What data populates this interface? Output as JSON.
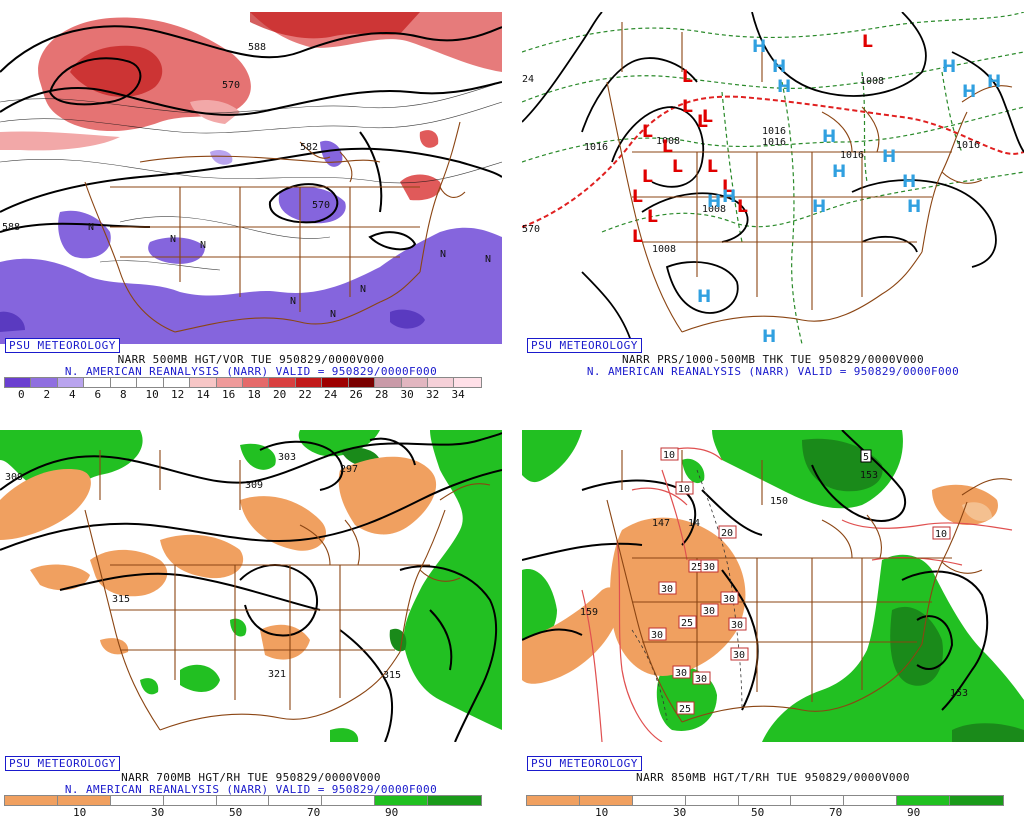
{
  "brand": "PSU METEOROLOGY",
  "panels": [
    {
      "title": "NARR 500MB HGT/VOR TUE 950829/0000V000",
      "subtitle": "N. AMERICAN REANALYSIS (NARR) VALID = 950829/0000F000",
      "colorbar": {
        "colors": [
          "#6a3fd0",
          "#8f6fe0",
          "#b9a4ee",
          "#ffffff",
          "#ffffff",
          "#ffffff",
          "#ffffff",
          "#f7c6c6",
          "#ef9a9a",
          "#e56a6a",
          "#d94040",
          "#c21a1a",
          "#9e0000",
          "#7a0000",
          "#c99aa8",
          "#e2b6c0",
          "#f5d0d8",
          "#ffe0e8"
        ],
        "labels": [
          "0",
          "2",
          "4",
          "6",
          "8",
          "10",
          "12",
          "14",
          "16",
          "18",
          "20",
          "22",
          "24",
          "26",
          "28",
          "30",
          "32",
          "34"
        ]
      },
      "contour_labels": [
        "588",
        "582",
        "570",
        "588",
        "570",
        "N",
        "N",
        "N",
        "N",
        "N",
        "N",
        "N",
        "N"
      ]
    },
    {
      "title": "NARR PRS/1000-500MB THK TUE 950829/0000V000",
      "subtitle": "N. AMERICAN REANALYSIS (NARR) VALID = 950829/0000F000",
      "contour_labels": [
        "1016",
        "1008",
        "1016",
        "1016",
        "1016",
        "1016",
        "1008",
        "1008",
        "1008",
        "570",
        "24",
        "16"
      ],
      "pressure_centers": {
        "lows": [
          "L",
          "L",
          "L",
          "L",
          "L",
          "L",
          "L",
          "L",
          "L",
          "L",
          "L",
          "L",
          "L",
          "L",
          "L"
        ],
        "highs": [
          "H",
          "H",
          "H",
          "H",
          "H",
          "H",
          "H",
          "H",
          "H",
          "H",
          "H",
          "H",
          "H",
          "H",
          "H",
          "H"
        ]
      }
    },
    {
      "title": "NARR 700MB HGT/RH TUE 950829/0000V000",
      "subtitle": "N. AMERICAN REANALYSIS (NARR) VALID = 950829/0000F000",
      "colorbar": {
        "colors": [
          "#f0a060",
          "#f0a060",
          "#ffffff",
          "#ffffff",
          "#ffffff",
          "#ffffff",
          "#ffffff",
          "#20c020",
          "#1a9a1a"
        ],
        "labels": [
          "10",
          "30",
          "50",
          "70",
          "90"
        ]
      },
      "contour_labels": [
        "309",
        "303",
        "297",
        "309",
        "315",
        "321",
        "315"
      ]
    },
    {
      "title": "NARR 850MB HGT/T/RH TUE 950829/0000V000",
      "subtitle": "",
      "colorbar": {
        "colors": [
          "#f0a060",
          "#f0a060",
          "#ffffff",
          "#ffffff",
          "#ffffff",
          "#ffffff",
          "#ffffff",
          "#20c020",
          "#1a9a1a"
        ],
        "labels": [
          "10",
          "30",
          "50",
          "70",
          "90"
        ]
      },
      "contour_labels": [
        "150",
        "147",
        "14",
        "153",
        "159",
        "153",
        "5"
      ],
      "boxed_labels": [
        "10",
        "10",
        "20",
        "10",
        "25",
        "30",
        "30",
        "30",
        "30",
        "25",
        "30",
        "30",
        "30",
        "30",
        "30",
        "25",
        "5"
      ]
    }
  ]
}
